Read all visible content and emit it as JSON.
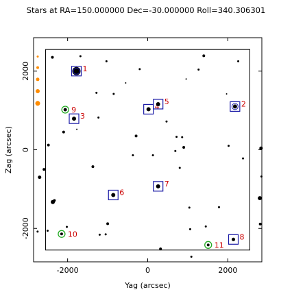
{
  "chart_data": {
    "type": "scatter",
    "title": "Stars at RA=150.000000 Dec=-30.000000 Roll=340.306301",
    "xlabel": "Yag (arcsec)",
    "ylabel": "Zag (arcsec)",
    "xlim": [
      -2850,
      2850
    ],
    "ylim": [
      -2850,
      2850
    ],
    "xticks": [
      -2000,
      0,
      2000
    ],
    "yticks": [
      -2000,
      0,
      2000
    ],
    "xtick_labels": [
      "-2000",
      "0",
      "2000"
    ],
    "ytick_labels": [
      "-2000",
      "0",
      "2000"
    ],
    "fov_box": {
      "ymin": -2550,
      "ymax": 2550,
      "zmin": -2550,
      "zmax": 2550
    },
    "colors": {
      "star": "#000000",
      "selected_box": "#1a1aa6",
      "label": "#cc0000",
      "acq_circle": "#22aa22",
      "guide_circle": "#1a1aa6",
      "legend_marker": "#ff8c00"
    },
    "selected_stars": [
      {
        "id": "1",
        "yag": -1780,
        "zag": 2000,
        "size": 6,
        "guide": true
      },
      {
        "id": "2",
        "yag": 2180,
        "zag": 1100,
        "size": 3,
        "guide": true
      },
      {
        "id": "3",
        "yag": -1840,
        "zag": 790,
        "size": 3,
        "guide": false
      },
      {
        "id": "4",
        "yag": 20,
        "zag": 1030,
        "size": 3,
        "guide": false
      },
      {
        "id": "5",
        "yag": 260,
        "zag": 1160,
        "size": 3,
        "guide": false
      },
      {
        "id": "6",
        "yag": -860,
        "zag": -1150,
        "size": 3,
        "guide": false
      },
      {
        "id": "7",
        "yag": 260,
        "zag": -930,
        "size": 3,
        "guide": false
      },
      {
        "id": "8",
        "yag": 2140,
        "zag": -2280,
        "size": 2.5,
        "guide": false
      },
      {
        "id": "9",
        "yag": -2060,
        "zag": 1020,
        "size": 2.5,
        "acq": true
      },
      {
        "id": "10",
        "yag": -2150,
        "zag": -2140,
        "size": 2,
        "acq": true
      },
      {
        "id": "11",
        "yag": 1510,
        "zag": -2420,
        "size": 2,
        "acq": true
      }
    ],
    "field_stars": [
      {
        "yag": -2380,
        "zag": 2350,
        "size": 2
      },
      {
        "yag": -1680,
        "zag": 2380,
        "size": 1.5
      },
      {
        "yag": -1030,
        "zag": 2250,
        "size": 1.5
      },
      {
        "yag": -200,
        "zag": 2050,
        "size": 1.5
      },
      {
        "yag": 1270,
        "zag": 2040,
        "size": 1.5
      },
      {
        "yag": 1400,
        "zag": 2390,
        "size": 2
      },
      {
        "yag": 2260,
        "zag": 2250,
        "size": 1.5
      },
      {
        "yag": -1280,
        "zag": 1450,
        "size": 1.5
      },
      {
        "yag": -850,
        "zag": 1420,
        "size": 1.5
      },
      {
        "yag": -550,
        "zag": 1700,
        "size": 1
      },
      {
        "yag": 960,
        "zag": 1800,
        "size": 1
      },
      {
        "yag": 1970,
        "zag": 1420,
        "size": 1
      },
      {
        "yag": -2100,
        "zag": 450,
        "size": 2
      },
      {
        "yag": -1770,
        "zag": 520,
        "size": 1
      },
      {
        "yag": -1230,
        "zag": 820,
        "size": 1.5
      },
      {
        "yag": -290,
        "zag": 350,
        "size": 2
      },
      {
        "yag": 470,
        "zag": 720,
        "size": 1.5
      },
      {
        "yag": 720,
        "zag": 330,
        "size": 1.5
      },
      {
        "yag": 860,
        "zag": 320,
        "size": 1.5
      },
      {
        "yag": 900,
        "zag": 60,
        "size": 2
      },
      {
        "yag": 690,
        "zag": -30,
        "size": 1.5
      },
      {
        "yag": -2480,
        "zag": 120,
        "size": 2
      },
      {
        "yag": -2590,
        "zag": -500,
        "size": 2
      },
      {
        "yag": -1370,
        "zag": -430,
        "size": 2
      },
      {
        "yag": -370,
        "zag": -140,
        "size": 1.5
      },
      {
        "yag": 130,
        "zag": -140,
        "size": 1.5
      },
      {
        "yag": 800,
        "zag": -460,
        "size": 1.5
      },
      {
        "yag": 2020,
        "zag": 100,
        "size": 1.5
      },
      {
        "yag": 2380,
        "zag": -220,
        "size": 1.5
      },
      {
        "yag": -2370,
        "zag": -1330,
        "size": 3
      },
      {
        "yag": -2330,
        "zag": -1290,
        "size": 2
      },
      {
        "yag": -1000,
        "zag": -1880,
        "size": 2
      },
      {
        "yag": -1200,
        "zag": -2160,
        "size": 1.5
      },
      {
        "yag": -1050,
        "zag": -2150,
        "size": 1.5
      },
      {
        "yag": -2500,
        "zag": -2060,
        "size": 1.5
      },
      {
        "yag": -2020,
        "zag": -1960,
        "size": 1.5
      },
      {
        "yag": 1040,
        "zag": -1470,
        "size": 1.5
      },
      {
        "yag": 1450,
        "zag": -1950,
        "size": 1.5
      },
      {
        "yag": 1060,
        "zag": -2020,
        "size": 1.5
      },
      {
        "yag": 1780,
        "zag": -1460,
        "size": 1.5
      },
      {
        "yag": 320,
        "zag": -2520,
        "size": 2
      },
      {
        "yag": 1090,
        "zag": -2720,
        "size": 1.5
      },
      {
        "yag": -2700,
        "zag": -700,
        "size": 2.5
      },
      {
        "yag": -2750,
        "zag": -2080,
        "size": 1.5
      },
      {
        "yag": 2830,
        "zag": 40,
        "size": 2.5
      },
      {
        "yag": 2800,
        "zag": -1230,
        "size": 3
      },
      {
        "yag": 2810,
        "zag": -1890,
        "size": 2
      },
      {
        "yag": 2840,
        "zag": -680,
        "size": 1.5
      }
    ],
    "legend_markers": [
      {
        "zag": 2370,
        "size": 1.5
      },
      {
        "zag": 2090,
        "size": 2
      },
      {
        "zag": 1790,
        "size": 2.5
      },
      {
        "zag": 1490,
        "size": 3
      },
      {
        "zag": 1180,
        "size": 3.5
      }
    ]
  }
}
